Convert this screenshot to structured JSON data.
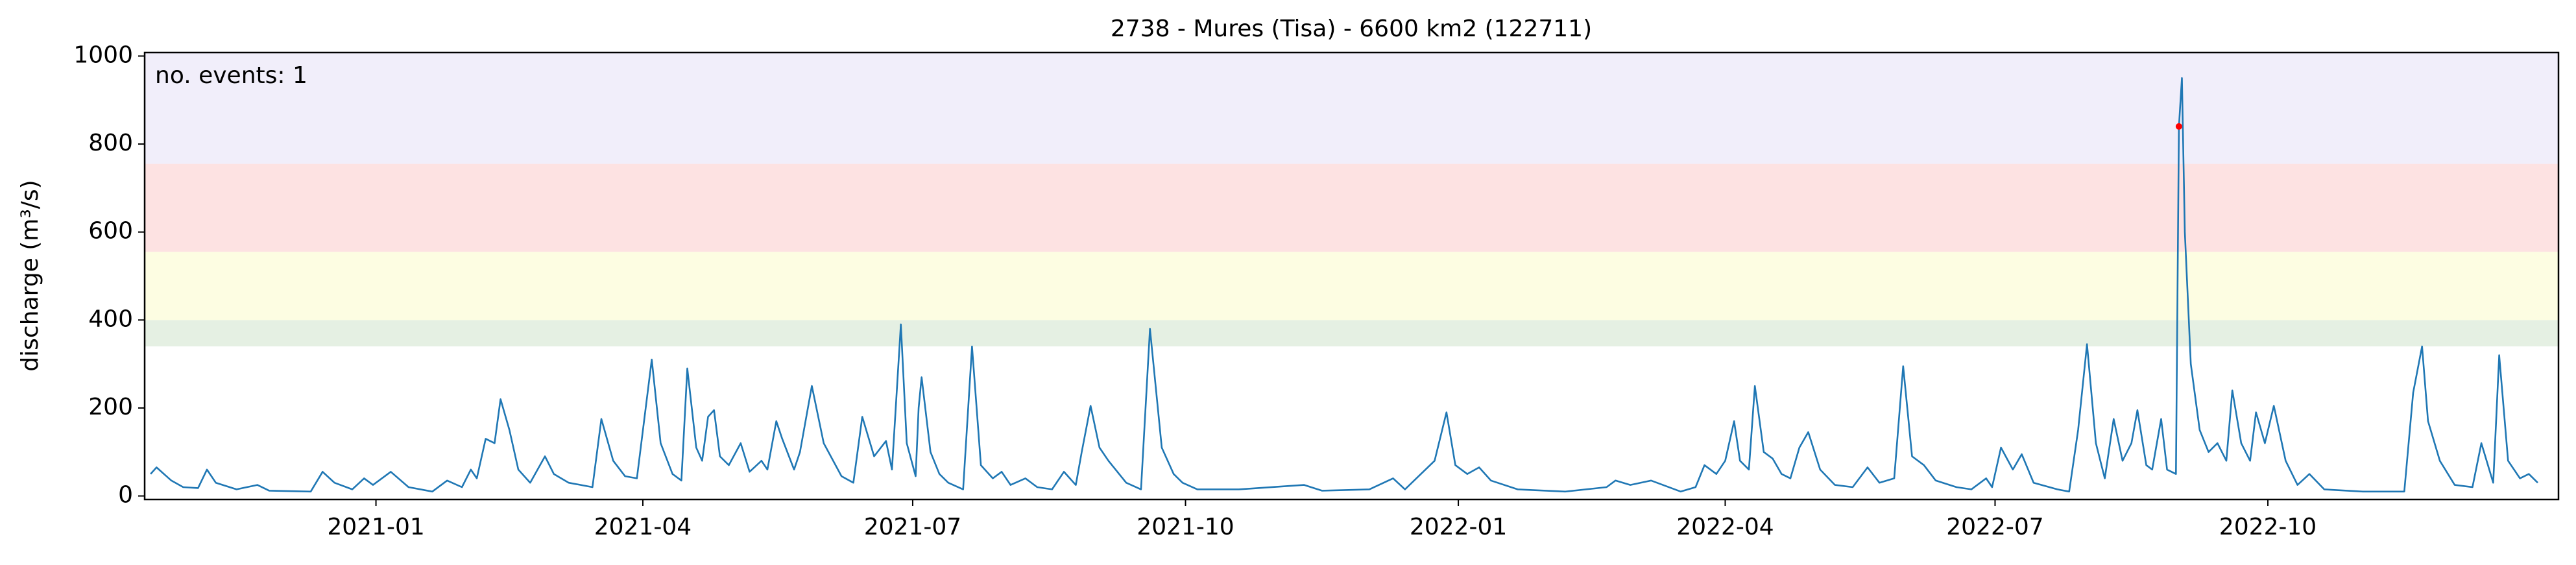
{
  "chart_data": {
    "type": "line",
    "title": "2738 - Mures (Tisa) - 6600 km2 (122711)",
    "ylabel": "discharge (m³/s)",
    "annotation": {
      "text": "no. events: 1",
      "color": "#ff0000"
    },
    "color": "#1f77b4",
    "x": [
      -76,
      -74,
      -69,
      -65,
      -60,
      -57,
      -54,
      -47,
      -40,
      -36,
      -22,
      -18,
      -14,
      -8,
      -4,
      -1,
      5,
      11,
      19,
      24,
      29,
      32,
      34,
      37,
      40,
      42,
      45,
      48,
      52,
      57,
      60,
      65,
      73,
      76,
      80,
      84,
      88,
      93,
      96,
      100,
      103,
      105,
      108,
      110,
      112,
      114,
      116,
      119,
      123,
      126,
      130,
      132,
      135,
      137,
      141,
      143,
      147,
      151,
      157,
      161,
      164,
      168,
      172,
      174,
      177,
      179,
      182,
      183,
      184,
      187,
      190,
      193,
      198,
      201,
      204,
      208,
      211,
      214,
      219,
      223,
      228,
      232,
      236,
      238,
      241,
      244,
      247,
      253,
      258,
      261,
      265,
      269,
      272,
      277,
      291,
      313,
      319,
      335,
      343,
      347,
      357,
      361,
      364,
      368,
      372,
      376,
      385,
      401,
      415,
      418,
      423,
      430,
      440,
      445,
      448,
      452,
      455,
      458,
      460,
      463,
      465,
      468,
      471,
      474,
      477,
      480,
      483,
      487,
      492,
      498,
      503,
      507,
      512,
      515,
      518,
      522,
      526,
      533,
      538,
      543,
      545,
      548,
      552,
      555,
      559,
      567,
      571,
      574,
      577,
      580,
      583,
      586,
      589,
      592,
      594,
      597,
      599,
      602,
      604,
      607,
      608,
      609,
      610,
      612,
      615,
      618,
      621,
      624,
      626,
      629,
      632,
      634,
      637,
      640,
      644,
      648,
      652,
      657,
      670,
      684,
      687,
      690,
      692,
      696,
      701,
      707,
      710,
      714,
      716,
      719,
      723,
      726,
      729
    ],
    "values": [
      50,
      65,
      35,
      20,
      18,
      60,
      30,
      15,
      25,
      12,
      10,
      55,
      30,
      15,
      40,
      25,
      55,
      20,
      10,
      35,
      20,
      60,
      40,
      130,
      120,
      220,
      150,
      60,
      30,
      90,
      50,
      30,
      20,
      175,
      80,
      45,
      40,
      310,
      120,
      50,
      35,
      290,
      110,
      80,
      180,
      195,
      90,
      70,
      120,
      55,
      80,
      60,
      170,
      130,
      60,
      100,
      250,
      120,
      45,
      30,
      180,
      90,
      125,
      60,
      390,
      120,
      45,
      200,
      270,
      100,
      50,
      30,
      15,
      340,
      70,
      40,
      55,
      25,
      40,
      20,
      15,
      55,
      25,
      100,
      205,
      110,
      80,
      30,
      15,
      380,
      110,
      50,
      30,
      15,
      15,
      25,
      12,
      15,
      40,
      15,
      80,
      190,
      70,
      50,
      65,
      35,
      15,
      10,
      20,
      35,
      25,
      35,
      10,
      20,
      70,
      50,
      80,
      170,
      80,
      60,
      250,
      100,
      85,
      50,
      40,
      110,
      145,
      60,
      25,
      20,
      65,
      30,
      40,
      295,
      90,
      70,
      35,
      20,
      15,
      40,
      20,
      110,
      60,
      95,
      30,
      15,
      10,
      150,
      345,
      120,
      40,
      175,
      80,
      120,
      195,
      70,
      60,
      175,
      60,
      50,
      840,
      950,
      600,
      300,
      150,
      100,
      120,
      80,
      240,
      120,
      80,
      190,
      120,
      205,
      80,
      25,
      50,
      15,
      10,
      10,
      235,
      340,
      170,
      80,
      25,
      20,
      120,
      30,
      320,
      80,
      40,
      50,
      30
    ],
    "events": {
      "x": [
        608
      ],
      "y": [
        840
      ],
      "color": "#ff0000"
    },
    "bands": [
      {
        "from": 340,
        "to": 400,
        "color": "#e5f0e3"
      },
      {
        "from": 400,
        "to": 555,
        "color": "#fdfde2"
      },
      {
        "from": 555,
        "to": 755,
        "color": "#fde2e2"
      },
      {
        "from": 755,
        "to": 1008,
        "color": "#f1eefa"
      }
    ],
    "xlim": [
      -78,
      736
    ],
    "ylim": [
      -8,
      1008
    ],
    "xticks": [
      {
        "value": 0,
        "label": "2021-01"
      },
      {
        "value": 90,
        "label": "2021-04"
      },
      {
        "value": 181,
        "label": "2021-07"
      },
      {
        "value": 273,
        "label": "2021-10"
      },
      {
        "value": 365,
        "label": "2022-01"
      },
      {
        "value": 455,
        "label": "2022-04"
      },
      {
        "value": 546,
        "label": "2022-07"
      },
      {
        "value": 638,
        "label": "2022-10"
      }
    ],
    "yticks": [
      0,
      200,
      400,
      600,
      800,
      1000
    ]
  }
}
